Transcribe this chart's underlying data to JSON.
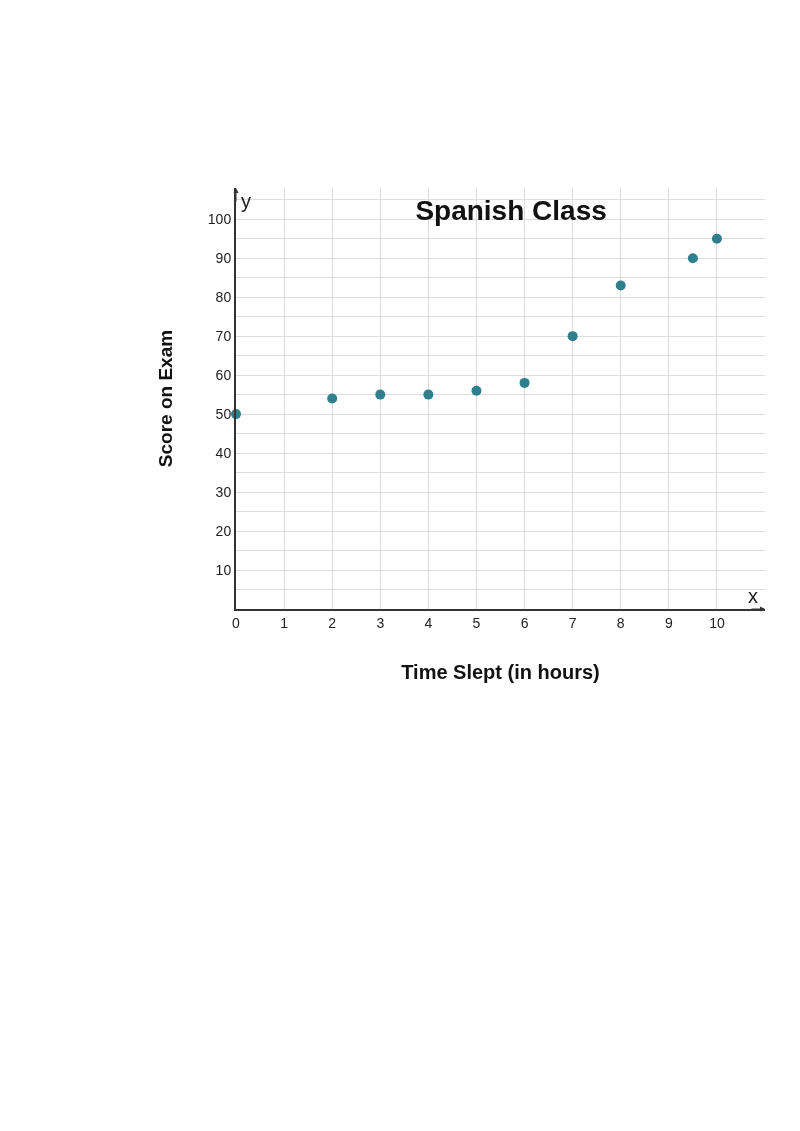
{
  "chart_data": {
    "type": "scatter",
    "title": "Spanish Class",
    "xlabel": "Time Slept (in hours)",
    "ylabel": "Score on Exam",
    "annotations": [
      "x",
      "y"
    ],
    "x": [
      0,
      2,
      3,
      4,
      5,
      6,
      7,
      8,
      9.5,
      10
    ],
    "series": [
      {
        "color": "#2f7f8c",
        "values": [
          50,
          54,
          55,
          55,
          56,
          58,
          70,
          83,
          90,
          95
        ]
      }
    ],
    "xlim": [
      0,
      11
    ],
    "ylim": [
      0,
      108
    ],
    "xticks": [
      0,
      1,
      2,
      3,
      4,
      5,
      6,
      7,
      8,
      9,
      10
    ],
    "yticks": [
      {
        "value": 5,
        "label": null
      },
      10,
      {
        "value": 15,
        "label": null
      },
      20,
      {
        "value": 25,
        "label": null
      },
      30,
      {
        "value": 35,
        "label": null
      },
      40,
      {
        "value": 45,
        "label": null
      },
      50,
      {
        "value": 55,
        "label": null
      },
      60,
      {
        "value": 65,
        "label": null
      },
      70,
      {
        "value": 75,
        "label": null
      },
      80,
      {
        "value": 85,
        "label": null
      },
      90,
      {
        "value": 95,
        "label": null
      },
      100,
      {
        "value": 105,
        "label": null
      }
    ],
    "grid": true,
    "marker": "circle"
  }
}
